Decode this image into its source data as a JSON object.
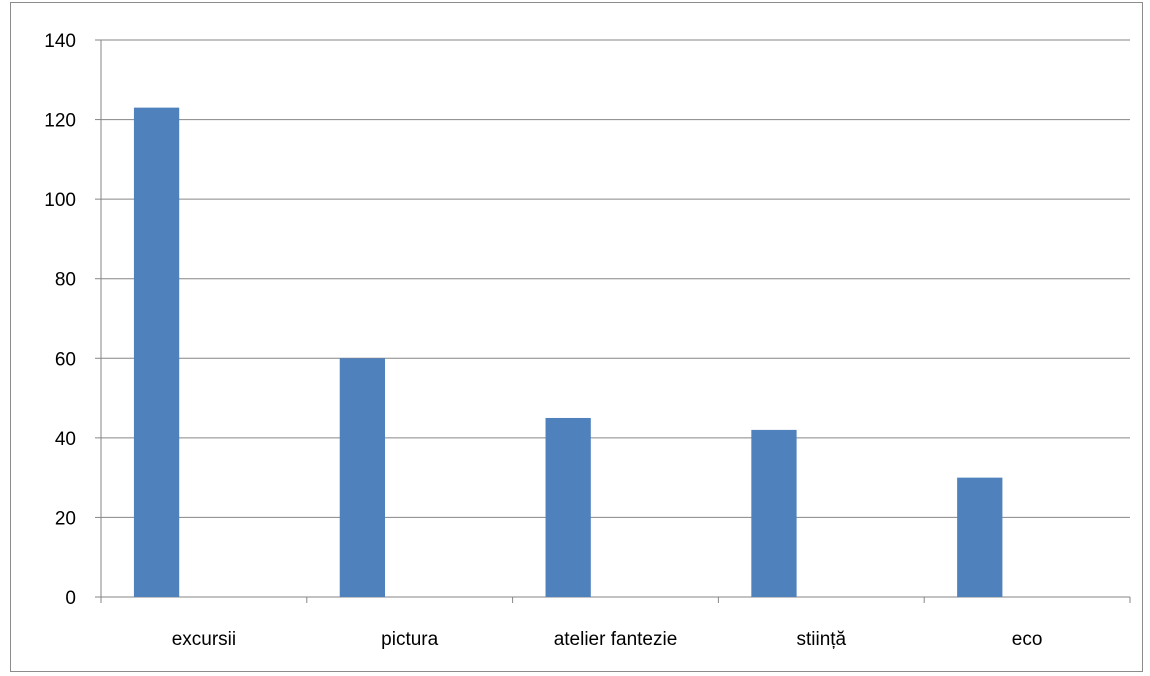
{
  "chart_data": {
    "type": "bar",
    "categories": [
      "excursii",
      "pictura",
      "atelier fantezie",
      "stiință",
      "eco"
    ],
    "values": [
      123,
      60,
      45,
      42,
      30
    ],
    "ylim": [
      0,
      140
    ],
    "yticks": [
      "0",
      "20",
      "40",
      "60",
      "80",
      "100",
      "120",
      "140"
    ],
    "grid": true,
    "legend": "none",
    "bar_color": "#4f81bd",
    "grid_color": "#868686"
  }
}
